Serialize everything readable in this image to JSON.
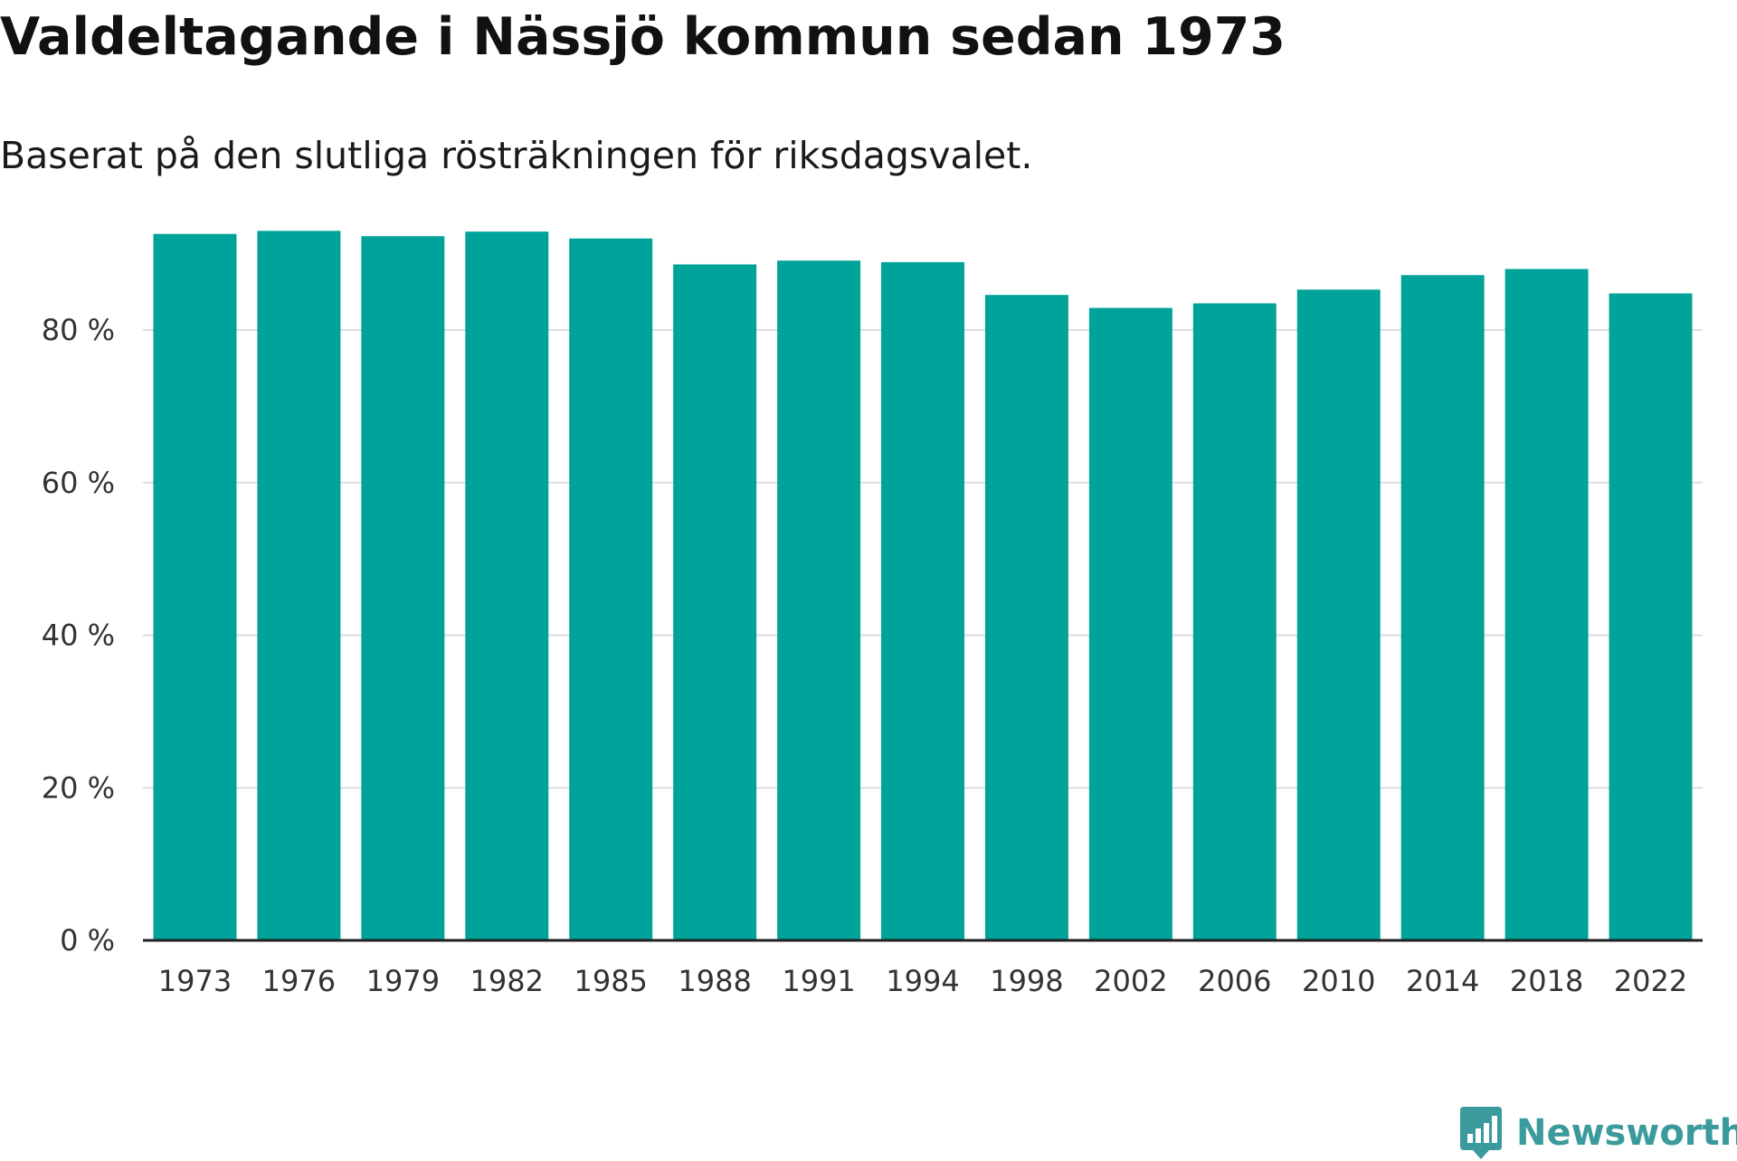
{
  "title": "Valdeltagande i Nässjö kommun sedan 1973",
  "subtitle": "Baserat på den slutliga rösträkningen för riksdagsvalet.",
  "brand": {
    "name": "Newsworthy",
    "icon": "newsworthy-logo-icon",
    "color": "#3b9a9c"
  },
  "colors": {
    "bar": "#00a39a",
    "grid": "#dddddd",
    "axis": "#222222"
  },
  "chart_data": {
    "type": "bar",
    "title": "Valdeltagande i Nässjö kommun sedan 1973",
    "subtitle": "Baserat på den slutliga rösträkningen för riksdagsvalet.",
    "xlabel": "",
    "ylabel": "",
    "categories": [
      "1973",
      "1976",
      "1979",
      "1982",
      "1985",
      "1988",
      "1991",
      "1994",
      "1998",
      "2002",
      "2006",
      "2010",
      "2014",
      "2018",
      "2022"
    ],
    "values": [
      92.6,
      93.0,
      92.3,
      92.9,
      92.0,
      88.6,
      89.1,
      88.9,
      84.6,
      82.9,
      83.5,
      85.3,
      87.2,
      88.0,
      84.8
    ],
    "ylim": [
      0,
      100
    ],
    "yticks": [
      0,
      20,
      40,
      60,
      80
    ],
    "ytick_labels": [
      "0 %",
      "20 %",
      "40 %",
      "60 %",
      "80 %"
    ],
    "grid": true
  }
}
